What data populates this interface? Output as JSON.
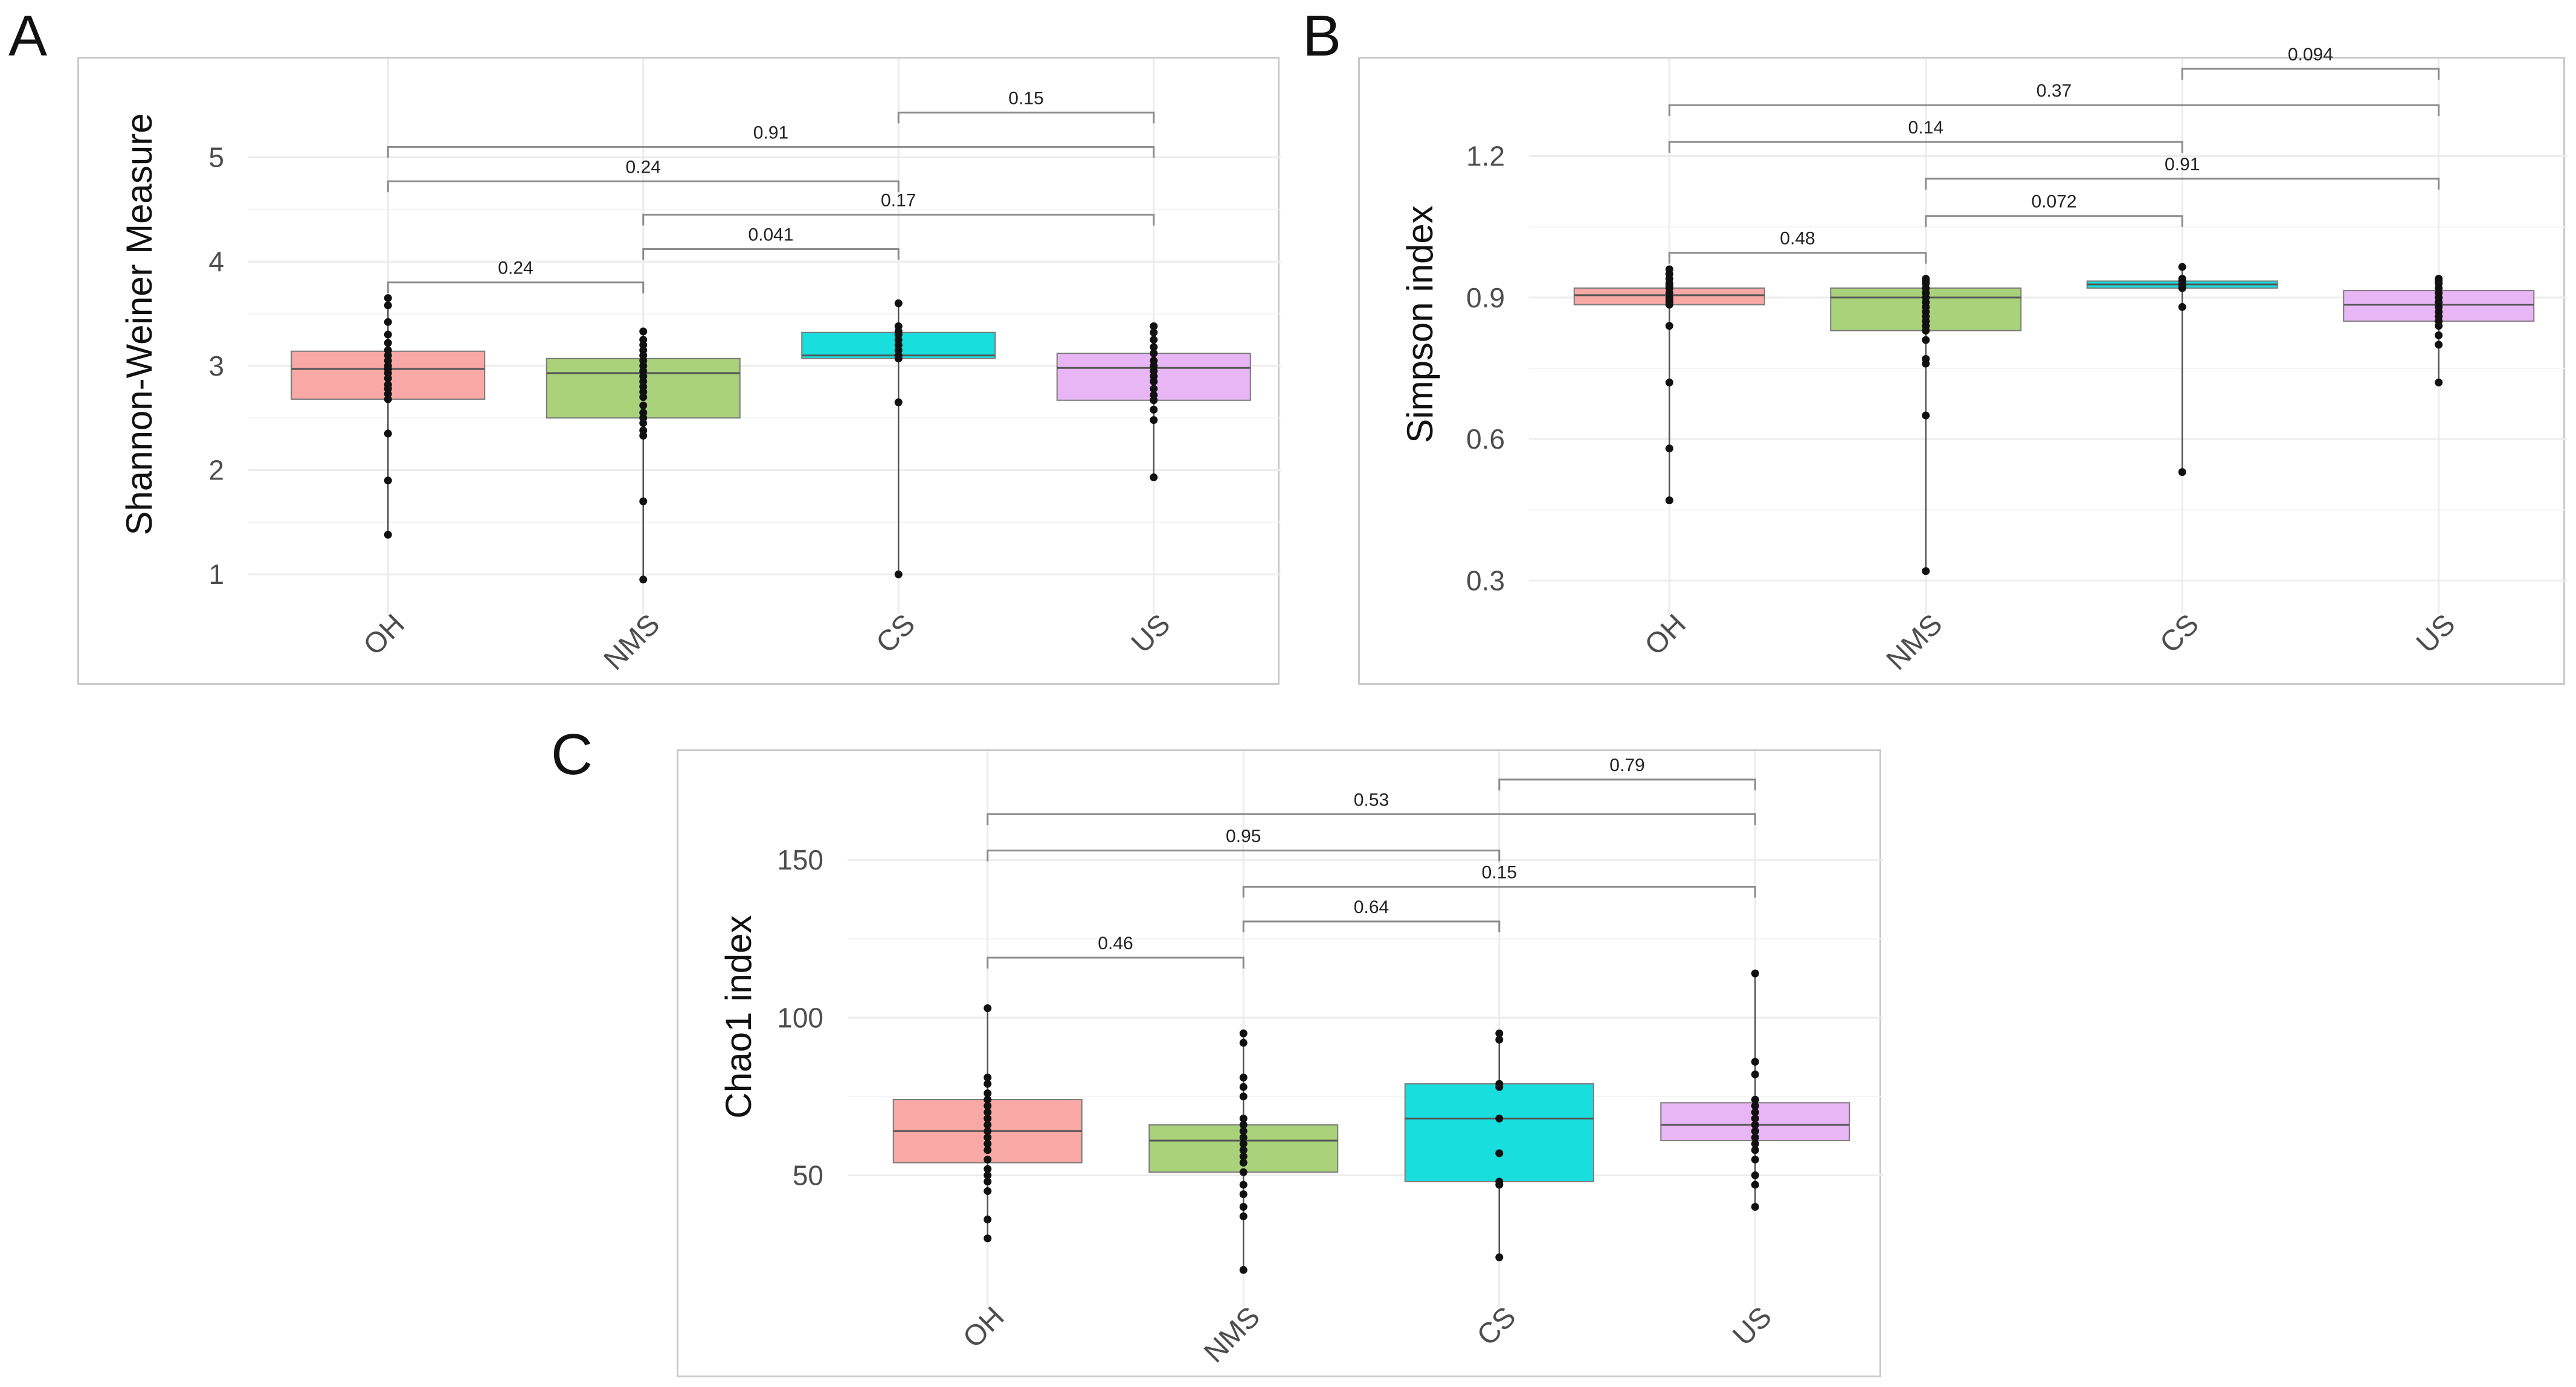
{
  "figure": {
    "panel_labels": [
      "A",
      "B",
      "C"
    ]
  },
  "colors": {
    "OH": "#f8a9a6",
    "NMS": "#a9d27a",
    "CS": "#19dede",
    "US": "#e9b6f5",
    "points": "#111111",
    "brackets": "#8c8c8c",
    "grid": "#ececec"
  },
  "chart_data": [
    {
      "type": "box",
      "panel": "A",
      "title": "",
      "xlabel": "",
      "ylabel": "Shannon-Weiner Measure",
      "categories": [
        "OH",
        "NMS",
        "CS",
        "US"
      ],
      "ylim": [
        0.85,
        5.6
      ],
      "yticks": [
        1,
        2,
        3,
        4,
        5
      ],
      "ytick_labels": [
        "1",
        "2",
        "3",
        "4",
        "5"
      ],
      "grid": true,
      "boxes": [
        {
          "q1": 2.68,
          "median": 2.97,
          "q3": 3.14,
          "whisker_low": 1.38,
          "whisker_high": 3.65,
          "points": [
            3.65,
            3.58,
            3.42,
            3.3,
            3.22,
            3.15,
            3.1,
            3.05,
            3.0,
            2.97,
            2.93,
            2.88,
            2.82,
            2.78,
            2.73,
            2.68,
            2.35,
            1.9,
            1.38
          ]
        },
        {
          "q1": 2.5,
          "median": 2.93,
          "q3": 3.07,
          "whisker_low": 0.95,
          "whisker_high": 3.33,
          "points": [
            3.33,
            3.25,
            3.2,
            3.15,
            3.1,
            3.05,
            3.0,
            2.95,
            2.9,
            2.85,
            2.8,
            2.75,
            2.7,
            2.62,
            2.55,
            2.5,
            2.45,
            2.38,
            2.33,
            1.7,
            0.95
          ]
        },
        {
          "q1": 3.07,
          "median": 3.1,
          "q3": 3.32,
          "whisker_low": 1.0,
          "whisker_high": 3.6,
          "points": [
            3.6,
            3.38,
            3.33,
            3.3,
            3.25,
            3.2,
            3.15,
            3.1,
            3.07,
            2.65,
            1.0
          ]
        },
        {
          "q1": 2.67,
          "median": 2.98,
          "q3": 3.12,
          "whisker_low": 1.93,
          "whisker_high": 3.38,
          "points": [
            3.38,
            3.32,
            3.25,
            3.18,
            3.12,
            3.05,
            3.0,
            2.95,
            2.9,
            2.85,
            2.78,
            2.72,
            2.67,
            2.58,
            2.48,
            1.93
          ]
        }
      ],
      "comparisons": [
        {
          "from": 0,
          "to": 1,
          "y": 3.8,
          "label": "0.24"
        },
        {
          "from": 1,
          "to": 2,
          "y": 4.12,
          "label": "0.041"
        },
        {
          "from": 1,
          "to": 3,
          "y": 4.45,
          "label": "0.17"
        },
        {
          "from": 0,
          "to": 2,
          "y": 4.77,
          "label": "0.24"
        },
        {
          "from": 0,
          "to": 3,
          "y": 5.1,
          "label": "0.91"
        },
        {
          "from": 2,
          "to": 3,
          "y": 5.43,
          "label": "0.15"
        }
      ]
    },
    {
      "type": "box",
      "panel": "B",
      "title": "",
      "xlabel": "",
      "ylabel": "Simpson index",
      "categories": [
        "OH",
        "NMS",
        "CS",
        "US"
      ],
      "ylim": [
        0.28,
        1.33
      ],
      "yticks": [
        0.3,
        0.6,
        0.9,
        1.2
      ],
      "ytick_labels": [
        "0.3",
        "0.6",
        "0.9",
        "1.2"
      ],
      "grid": true,
      "boxes": [
        {
          "q1": 0.885,
          "median": 0.905,
          "q3": 0.92,
          "whisker_low": 0.47,
          "whisker_high": 0.96,
          "points": [
            0.96,
            0.95,
            0.94,
            0.93,
            0.925,
            0.92,
            0.91,
            0.9,
            0.895,
            0.89,
            0.885,
            0.84,
            0.72,
            0.58,
            0.47
          ]
        },
        {
          "q1": 0.83,
          "median": 0.9,
          "q3": 0.92,
          "whisker_low": 0.32,
          "whisker_high": 0.94,
          "points": [
            0.94,
            0.935,
            0.93,
            0.92,
            0.91,
            0.9,
            0.89,
            0.88,
            0.87,
            0.86,
            0.85,
            0.84,
            0.83,
            0.81,
            0.77,
            0.76,
            0.65,
            0.32
          ]
        },
        {
          "q1": 0.92,
          "median": 0.928,
          "q3": 0.935,
          "whisker_low": 0.53,
          "whisker_high": 0.965,
          "points": [
            0.965,
            0.94,
            0.935,
            0.93,
            0.925,
            0.92,
            0.88,
            0.53
          ]
        },
        {
          "q1": 0.85,
          "median": 0.885,
          "q3": 0.915,
          "whisker_low": 0.72,
          "whisker_high": 0.94,
          "points": [
            0.94,
            0.935,
            0.93,
            0.92,
            0.91,
            0.9,
            0.89,
            0.88,
            0.87,
            0.86,
            0.85,
            0.84,
            0.82,
            0.8,
            0.72
          ]
        }
      ],
      "comparisons": [
        {
          "from": 0,
          "to": 1,
          "y": 0.995,
          "label": "0.48"
        },
        {
          "from": 1,
          "to": 2,
          "y": 1.073,
          "label": "0.072"
        },
        {
          "from": 1,
          "to": 3,
          "y": 1.152,
          "label": "0.91"
        },
        {
          "from": 0,
          "to": 2,
          "y": 1.23,
          "label": "0.14"
        },
        {
          "from": 0,
          "to": 3,
          "y": 1.308,
          "label": "0.37"
        },
        {
          "from": 2,
          "to": 3,
          "y": 1.385,
          "label": "0.094"
        }
      ]
    },
    {
      "type": "box",
      "panel": "C",
      "title": "",
      "xlabel": "",
      "ylabel": "Chao1 index",
      "categories": [
        "OH",
        "NMS",
        "CS",
        "US"
      ],
      "ylim": [
        16,
        173
      ],
      "yticks": [
        50,
        100,
        150
      ],
      "ytick_labels": [
        "50",
        "100",
        "150"
      ],
      "grid": true,
      "boxes": [
        {
          "q1": 54,
          "median": 64,
          "q3": 74,
          "whisker_low": 30,
          "whisker_high": 103,
          "points": [
            103,
            81,
            79,
            76,
            74,
            72,
            70,
            68,
            66,
            64,
            62,
            60,
            58,
            55,
            52,
            50,
            48,
            45,
            36,
            30
          ]
        },
        {
          "q1": 51,
          "median": 61,
          "q3": 66,
          "whisker_low": 20,
          "whisker_high": 95,
          "points": [
            95,
            92,
            81,
            78,
            75,
            68,
            66,
            64,
            62,
            60,
            58,
            56,
            54,
            51,
            47,
            44,
            40,
            37,
            20
          ]
        },
        {
          "q1": 48,
          "median": 68,
          "q3": 79,
          "whisker_low": 24,
          "whisker_high": 95,
          "points": [
            95,
            93,
            79,
            78,
            68,
            57,
            48,
            47,
            24
          ]
        },
        {
          "q1": 61,
          "median": 66,
          "q3": 73,
          "whisker_low": 40,
          "whisker_high": 114,
          "points": [
            114,
            86,
            82,
            74,
            72,
            70,
            68,
            66,
            64,
            62,
            60,
            58,
            55,
            50,
            47,
            40
          ]
        }
      ],
      "comparisons": [
        {
          "from": 0,
          "to": 1,
          "y": 119,
          "label": "0.46"
        },
        {
          "from": 1,
          "to": 2,
          "y": 130.5,
          "label": "0.64"
        },
        {
          "from": 1,
          "to": 3,
          "y": 141.5,
          "label": "0.15"
        },
        {
          "from": 0,
          "to": 2,
          "y": 153,
          "label": "0.95"
        },
        {
          "from": 0,
          "to": 3,
          "y": 164.5,
          "label": "0.53"
        },
        {
          "from": 2,
          "to": 3,
          "y": 175.5,
          "label": "0.79"
        }
      ]
    }
  ]
}
